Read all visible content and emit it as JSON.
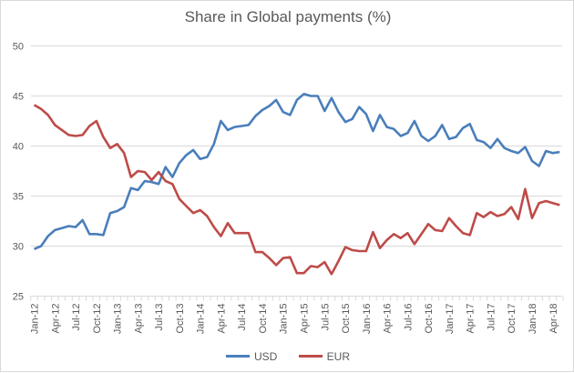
{
  "chart_data": {
    "type": "line",
    "title": "Share in Global payments (%)",
    "xlabel": "",
    "ylabel": "",
    "ylim": [
      25,
      50
    ],
    "yticks": [
      25,
      30,
      35,
      40,
      45,
      50
    ],
    "grid": true,
    "legend_position": "bottom",
    "start_month": "Jan-12",
    "x_tick_labels": [
      "Jan-12",
      "Apr-12",
      "Jul-12",
      "Oct-12",
      "Jan-13",
      "Apr-13",
      "Jul-13",
      "Oct-13",
      "Jan-14",
      "Apr-14",
      "Jul-14",
      "Oct-14",
      "Jan-15",
      "Apr-15",
      "Jul-15",
      "Oct-15",
      "Jan-16",
      "Apr-16",
      "Jul-16",
      "Oct-16",
      "Jan-17",
      "Apr-17",
      "Jul-17",
      "Oct-17",
      "Jan-18",
      "Apr-18"
    ],
    "series": [
      {
        "name": "USD",
        "color": "#4a7ebb",
        "values": [
          29.7,
          30.0,
          31.0,
          31.6,
          31.8,
          32.0,
          31.9,
          32.6,
          31.2,
          31.2,
          31.1,
          33.3,
          33.5,
          33.9,
          35.8,
          35.6,
          36.5,
          36.4,
          36.2,
          37.9,
          36.9,
          38.3,
          39.1,
          39.6,
          38.7,
          38.9,
          40.2,
          42.5,
          41.6,
          41.9,
          42.0,
          42.1,
          43.0,
          43.6,
          44.0,
          44.6,
          43.4,
          43.1,
          44.6,
          45.2,
          45.0,
          45.0,
          43.5,
          44.8,
          43.4,
          42.4,
          42.7,
          43.9,
          43.2,
          41.5,
          43.1,
          41.9,
          41.7,
          41.0,
          41.3,
          42.5,
          41.0,
          40.5,
          41.0,
          42.1,
          40.7,
          40.9,
          41.8,
          42.2,
          40.6,
          40.4,
          39.8,
          40.7,
          39.8,
          39.5,
          39.3,
          39.9,
          38.5,
          38.0,
          39.5,
          39.3,
          39.4
        ]
      },
      {
        "name": "EUR",
        "color": "#be4b48",
        "values": [
          44.1,
          43.7,
          43.1,
          42.1,
          41.6,
          41.1,
          41.0,
          41.1,
          42.0,
          42.5,
          40.9,
          39.8,
          40.2,
          39.3,
          36.9,
          37.5,
          37.4,
          36.6,
          37.4,
          36.5,
          36.2,
          34.7,
          34.0,
          33.3,
          33.6,
          33.0,
          31.9,
          31.0,
          32.3,
          31.3,
          31.3,
          31.3,
          29.4,
          29.4,
          28.8,
          28.1,
          28.8,
          28.9,
          27.3,
          27.3,
          28.0,
          27.9,
          28.4,
          27.2,
          28.5,
          29.9,
          29.6,
          29.5,
          29.5,
          31.4,
          29.8,
          30.6,
          31.2,
          30.8,
          31.3,
          30.2,
          31.2,
          32.2,
          31.6,
          31.5,
          32.8,
          32.0,
          31.3,
          31.1,
          33.3,
          32.9,
          33.4,
          33.0,
          33.2,
          33.9,
          32.7,
          35.7,
          32.8,
          34.3,
          34.5,
          34.3,
          34.1
        ]
      }
    ]
  }
}
